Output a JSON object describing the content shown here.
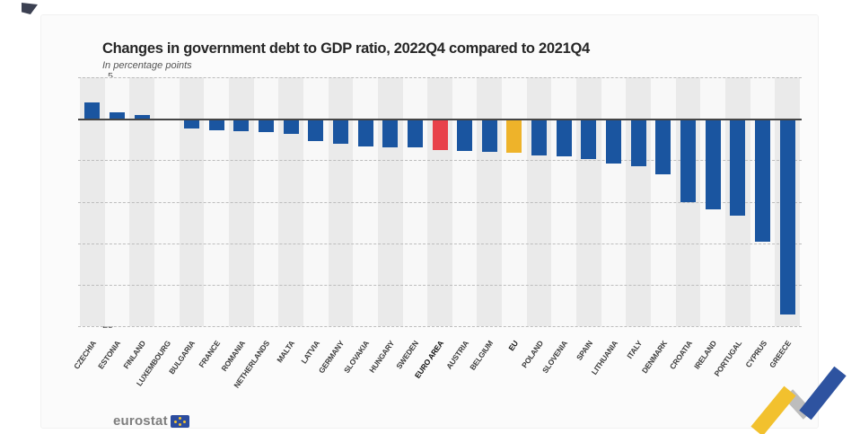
{
  "header": {
    "title": "Changes in government debt to GDP ratio, 2022Q4 compared to 2021Q4",
    "subtitle": "In percentage points"
  },
  "footer": {
    "logo_text": "eurostat"
  },
  "chart_data": {
    "type": "bar",
    "title": "Changes in government debt to GDP ratio, 2022Q4 compared to 2021Q4",
    "subtitle": "In percentage points",
    "unit": "percentage points",
    "xlabel": "",
    "ylabel": "",
    "ylim": [
      -25,
      5
    ],
    "yticks": [
      5,
      0,
      -5,
      -10,
      -15,
      -20,
      -25
    ],
    "grid": "horizontal-dashed",
    "legend_position": "none",
    "categories": [
      "CZECHIA",
      "ESTONIA",
      "FINLAND",
      "LUXEMBOURG",
      "BULGARIA",
      "FRANCE",
      "ROMANIA",
      "NETHERLANDS",
      "MALTA",
      "LATVIA",
      "GERMANY",
      "SLOVAKIA",
      "HUNGARY",
      "SWEDEN",
      "EURO AREA",
      "AUSTRIA",
      "BELGIUM",
      "EU",
      "POLAND",
      "SLOVENIA",
      "SPAIN",
      "LITHUANIA",
      "ITALY",
      "DENMARK",
      "CROATIA",
      "IRELAND",
      "PORTUGAL",
      "CYPRUS",
      "GREECE"
    ],
    "values": [
      2.0,
      0.8,
      0.4,
      -0.1,
      -1.2,
      -1.4,
      -1.5,
      -1.6,
      -1.8,
      -2.7,
      -3.0,
      -3.3,
      -3.4,
      -3.5,
      -3.8,
      -3.9,
      -4.0,
      -4.1,
      -4.4,
      -4.5,
      -4.9,
      -5.4,
      -5.7,
      -6.7,
      -10.1,
      -10.9,
      -11.7,
      -14.8,
      -23.6
    ],
    "colors": {
      "default": "#1a55a0",
      "euro_area": "#e8414a",
      "eu": "#eeb32a"
    },
    "highlighted_bars": {
      "EURO AREA": "euro_area",
      "EU": "eu"
    },
    "bold_labels": [
      "EURO AREA",
      "EU"
    ],
    "stripe_colors": {
      "even": "#eaeaea",
      "odd": "#f8f8f8"
    }
  }
}
